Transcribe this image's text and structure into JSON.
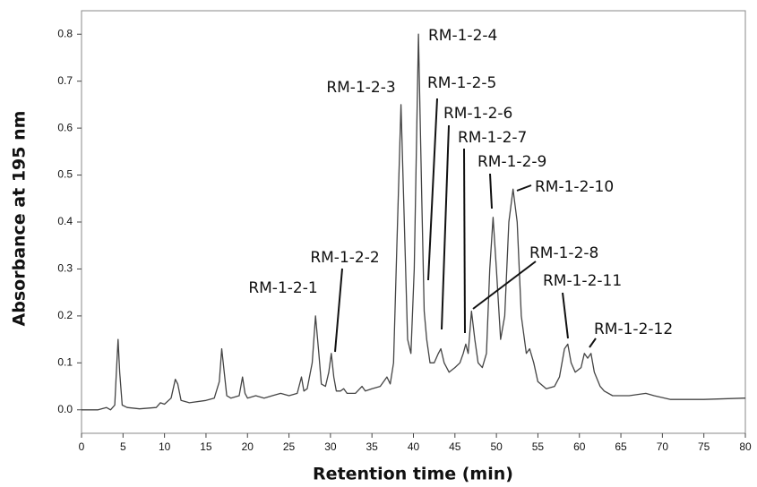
{
  "chart_data": {
    "type": "line",
    "xlabel": "Retention time (min)",
    "ylabel": "Absorbance at 195 nm",
    "color": "#444444",
    "xlim": [
      0,
      80
    ],
    "ylim": [
      -0.05,
      0.85
    ],
    "xticks": [
      0,
      5,
      10,
      15,
      20,
      25,
      30,
      35,
      40,
      45,
      50,
      55,
      60,
      65,
      70,
      75,
      80
    ],
    "yticks": [
      {
        "value": 0,
        "label": "0.0"
      },
      0.1,
      0.2,
      0.3,
      0.4,
      0.5,
      0.6,
      0.7,
      0.8
    ],
    "x": [
      0,
      2,
      3,
      3.5,
      4,
      4.2,
      4.4,
      4.6,
      4.9,
      5.5,
      7,
      9,
      9.5,
      10,
      10.8,
      11.3,
      11.6,
      12,
      13,
      15,
      16,
      16.6,
      16.9,
      17.2,
      17.5,
      18,
      19,
      19.4,
      19.7,
      20,
      21,
      22,
      23,
      24,
      25,
      26,
      26.5,
      26.8,
      27.2,
      27.8,
      28.2,
      28.6,
      28.9,
      29.4,
      29.8,
      30.1,
      30.4,
      30.7,
      31.2,
      31.6,
      32,
      33,
      33.8,
      34.2,
      35,
      36,
      36.8,
      37.2,
      37.6,
      38,
      38.5,
      38.9,
      39.3,
      39.7,
      40.1,
      40.6,
      41,
      41.3,
      41.6,
      42,
      42.5,
      43,
      43.3,
      43.7,
      44.3,
      45,
      45.6,
      46,
      46.3,
      46.6,
      47,
      47.4,
      47.8,
      48.3,
      48.8,
      49.2,
      49.6,
      50,
      50.5,
      51,
      51.5,
      52,
      52.5,
      53,
      53.6,
      54,
      54.5,
      55,
      56,
      57,
      57.6,
      58.2,
      58.6,
      59,
      59.5,
      60.2,
      60.6,
      61,
      61.4,
      61.8,
      62.5,
      63,
      64,
      66,
      68,
      69,
      71,
      75,
      80
    ],
    "values": [
      0,
      0,
      0.005,
      0,
      0.01,
      0.08,
      0.15,
      0.08,
      0.01,
      0.005,
      0.002,
      0.005,
      0.015,
      0.012,
      0.025,
      0.065,
      0.055,
      0.02,
      0.015,
      0.02,
      0.025,
      0.06,
      0.13,
      0.08,
      0.03,
      0.025,
      0.03,
      0.07,
      0.035,
      0.025,
      0.03,
      0.025,
      0.03,
      0.035,
      0.03,
      0.035,
      0.07,
      0.04,
      0.045,
      0.1,
      0.2,
      0.12,
      0.055,
      0.05,
      0.08,
      0.12,
      0.07,
      0.04,
      0.04,
      0.045,
      0.035,
      0.035,
      0.05,
      0.04,
      0.045,
      0.05,
      0.07,
      0.055,
      0.1,
      0.35,
      0.65,
      0.4,
      0.15,
      0.12,
      0.3,
      0.8,
      0.45,
      0.21,
      0.15,
      0.1,
      0.1,
      0.12,
      0.13,
      0.1,
      0.08,
      0.09,
      0.1,
      0.12,
      0.14,
      0.12,
      0.21,
      0.15,
      0.1,
      0.09,
      0.12,
      0.3,
      0.41,
      0.3,
      0.15,
      0.2,
      0.4,
      0.47,
      0.4,
      0.2,
      0.12,
      0.13,
      0.1,
      0.06,
      0.045,
      0.05,
      0.07,
      0.13,
      0.14,
      0.1,
      0.08,
      0.09,
      0.12,
      0.11,
      0.12,
      0.08,
      0.05,
      0.04,
      0.03,
      0.03,
      0.035,
      0.03,
      0.022,
      0.022,
      0.025
    ],
    "annotations": [
      "RM-1-2-1",
      "RM-1-2-2",
      "RM-1-2-3",
      "RM-1-2-4",
      "RM-1-2-5",
      "RM-1-2-6",
      "RM-1-2-7",
      "RM-1-2-9",
      "RM-1-2-10",
      "RM-1-2-8",
      "RM-1-2-11",
      "RM-1-2-12"
    ]
  }
}
